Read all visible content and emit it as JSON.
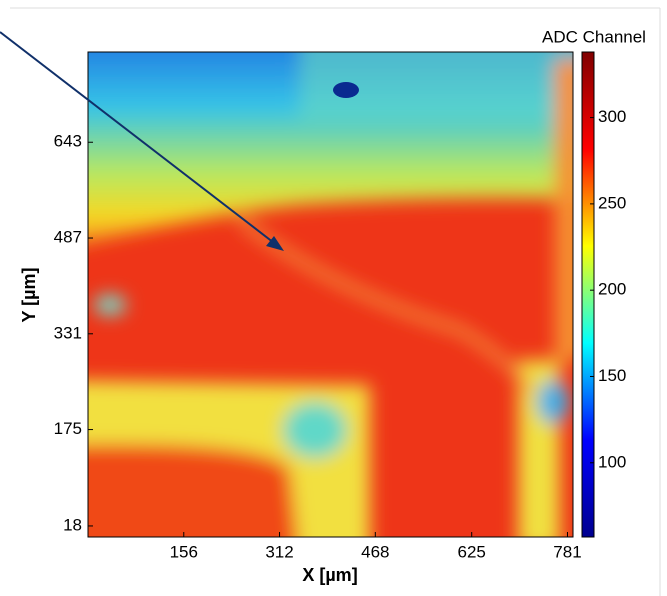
{
  "chart_data": {
    "type": "heatmap",
    "x_label": "X [µm]",
    "y_label": "Y [µm]",
    "xlim": [
      0,
      790
    ],
    "xticks": [
      156,
      312,
      468,
      625,
      781
    ],
    "ylim": [
      0,
      790
    ],
    "yticks": [
      18,
      175,
      331,
      487,
      643
    ],
    "colorbar": {
      "title": "ADC Channel",
      "colormap": "jet",
      "lim": [
        57,
        338
      ],
      "ticks": [
        100,
        150,
        200,
        250,
        300
      ]
    }
  }
}
